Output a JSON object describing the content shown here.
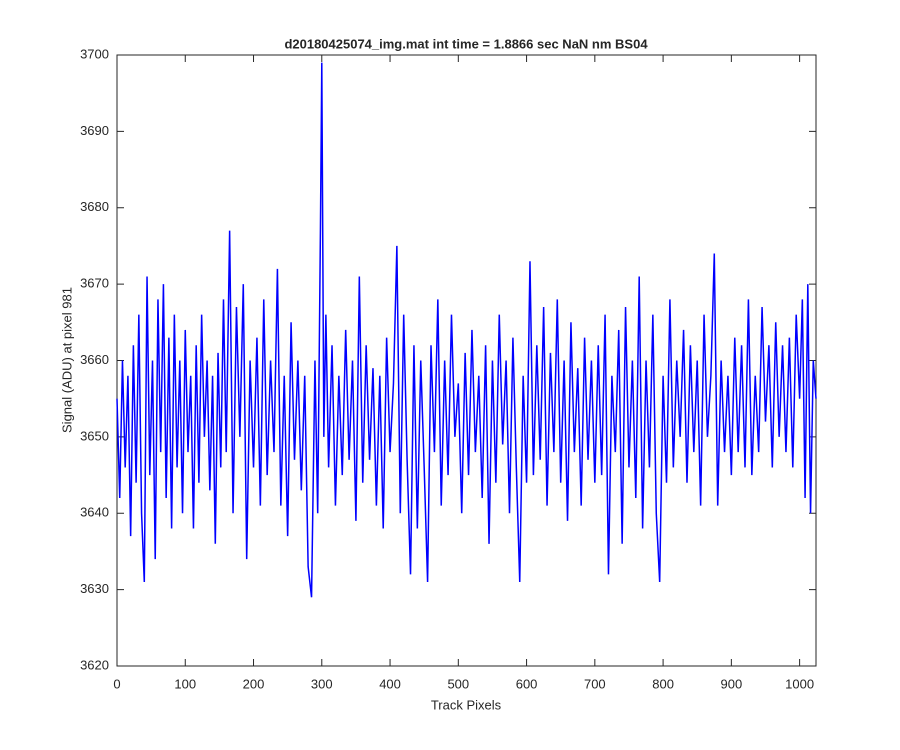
{
  "chart_data": {
    "type": "line",
    "title": "d20180425074_img.mat int time = 1.8866 sec  NaN nm BS04",
    "x_label": "Track Pixels",
    "y_label": "Signal (ADU) at pixel 981",
    "xlim": [
      0,
      1024
    ],
    "ylim": [
      3620,
      3700
    ],
    "xticks": [
      0,
      100,
      200,
      300,
      400,
      500,
      600,
      700,
      800,
      900,
      1000
    ],
    "yticks": [
      3620,
      3630,
      3640,
      3650,
      3660,
      3670,
      3680,
      3690,
      3700
    ],
    "grid": false,
    "series": [
      {
        "color": "#0000ff",
        "x": [
          0,
          4,
          8,
          12,
          16,
          20,
          24,
          28,
          32,
          36,
          40,
          44,
          48,
          52,
          56,
          60,
          64,
          68,
          72,
          76,
          80,
          84,
          88,
          92,
          96,
          100,
          104,
          108,
          112,
          116,
          120,
          124,
          128,
          132,
          136,
          140,
          144,
          148,
          152,
          156,
          160,
          165,
          170,
          175,
          180,
          185,
          190,
          195,
          200,
          205,
          210,
          215,
          220,
          225,
          230,
          235,
          240,
          245,
          250,
          255,
          260,
          265,
          270,
          275,
          280,
          285,
          290,
          294,
          298,
          300,
          303,
          306,
          310,
          315,
          320,
          325,
          330,
          335,
          340,
          345,
          350,
          355,
          360,
          365,
          370,
          375,
          380,
          385,
          390,
          395,
          400,
          405,
          410,
          415,
          420,
          425,
          430,
          435,
          440,
          445,
          450,
          455,
          460,
          465,
          470,
          475,
          480,
          485,
          490,
          495,
          500,
          505,
          510,
          515,
          520,
          525,
          530,
          535,
          540,
          545,
          550,
          555,
          560,
          565,
          570,
          575,
          580,
          585,
          590,
          595,
          600,
          605,
          610,
          615,
          620,
          625,
          630,
          635,
          640,
          645,
          650,
          655,
          660,
          665,
          670,
          675,
          680,
          685,
          690,
          695,
          700,
          705,
          710,
          715,
          720,
          725,
          730,
          735,
          740,
          745,
          750,
          755,
          760,
          765,
          770,
          775,
          780,
          785,
          790,
          795,
          800,
          805,
          810,
          815,
          820,
          825,
          830,
          835,
          840,
          845,
          850,
          855,
          860,
          865,
          870,
          875,
          880,
          885,
          890,
          895,
          900,
          905,
          910,
          915,
          920,
          925,
          930,
          935,
          940,
          945,
          950,
          955,
          960,
          965,
          970,
          975,
          980,
          985,
          990,
          995,
          1000,
          1004,
          1008,
          1012,
          1016,
          1020,
          1024
        ],
        "values": [
          3655,
          3642,
          3660,
          3646,
          3658,
          3637,
          3662,
          3644,
          3666,
          3640,
          3631,
          3671,
          3645,
          3660,
          3634,
          3668,
          3648,
          3670,
          3642,
          3663,
          3638,
          3666,
          3646,
          3660,
          3640,
          3664,
          3648,
          3658,
          3638,
          3662,
          3644,
          3666,
          3650,
          3660,
          3643,
          3658,
          3636,
          3661,
          3646,
          3668,
          3648,
          3677,
          3640,
          3667,
          3650,
          3670,
          3634,
          3660,
          3646,
          3663,
          3641,
          3668,
          3645,
          3660,
          3648,
          3672,
          3641,
          3658,
          3637,
          3665,
          3647,
          3660,
          3643,
          3658,
          3633,
          3629,
          3660,
          3640,
          3677,
          3699,
          3650,
          3666,
          3646,
          3662,
          3641,
          3658,
          3645,
          3664,
          3647,
          3660,
          3639,
          3671,
          3644,
          3662,
          3647,
          3659,
          3641,
          3658,
          3638,
          3663,
          3648,
          3657,
          3675,
          3640,
          3666,
          3647,
          3632,
          3662,
          3638,
          3660,
          3646,
          3631,
          3662,
          3648,
          3668,
          3641,
          3660,
          3645,
          3666,
          3650,
          3657,
          3640,
          3661,
          3645,
          3664,
          3648,
          3658,
          3642,
          3662,
          3636,
          3660,
          3644,
          3666,
          3649,
          3660,
          3640,
          3663,
          3646,
          3631,
          3658,
          3644,
          3673,
          3645,
          3662,
          3647,
          3667,
          3641,
          3661,
          3648,
          3668,
          3644,
          3660,
          3639,
          3665,
          3648,
          3659,
          3641,
          3663,
          3647,
          3660,
          3644,
          3662,
          3645,
          3666,
          3632,
          3658,
          3648,
          3664,
          3636,
          3667,
          3646,
          3660,
          3642,
          3671,
          3638,
          3660,
          3646,
          3666,
          3640,
          3631,
          3658,
          3644,
          3668,
          3646,
          3660,
          3650,
          3664,
          3644,
          3662,
          3648,
          3660,
          3641,
          3666,
          3650,
          3658,
          3674,
          3641,
          3660,
          3648,
          3658,
          3645,
          3663,
          3648,
          3662,
          3646,
          3668,
          3645,
          3658,
          3648,
          3667,
          3652,
          3662,
          3646,
          3665,
          3650,
          3662,
          3648,
          3663,
          3646,
          3666,
          3655,
          3668,
          3642,
          3670,
          3640,
          3660,
          3655
        ]
      }
    ]
  }
}
